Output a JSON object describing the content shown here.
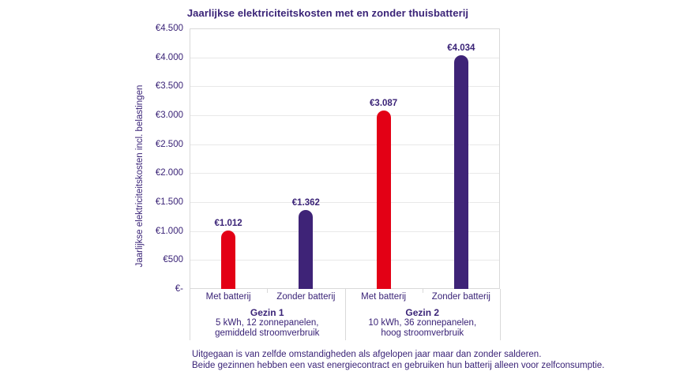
{
  "chart_data": {
    "type": "bar",
    "title": "Jaarlijkse elektriciteitskosten met en zonder thuisbatterij",
    "ylabel": "Jaarlijkse elektriciteitskosten incl. belastingen",
    "xlabel": "",
    "ylim": [
      0,
      4500
    ],
    "ytick_step": 500,
    "grid": true,
    "legend_position": "none",
    "yticks": [
      {
        "value": 4500,
        "label": "€4.500"
      },
      {
        "value": 4000,
        "label": "€4.000"
      },
      {
        "value": 3500,
        "label": "€3.500"
      },
      {
        "value": 3000,
        "label": "€3.000"
      },
      {
        "value": 2500,
        "label": "€2.500"
      },
      {
        "value": 2000,
        "label": "€2.000"
      },
      {
        "value": 1500,
        "label": "€1.500"
      },
      {
        "value": 1000,
        "label": "€1.000"
      },
      {
        "value": 500,
        "label": "€500"
      },
      {
        "value": 0,
        "label": "€-"
      }
    ],
    "groups": [
      {
        "name": "Gezin 1",
        "description_lines": [
          "5 kWh, 12 zonnepanelen,",
          "gemiddeld stroomverbruik"
        ],
        "bars": [
          {
            "category": "Met batterij",
            "value": 1012,
            "label": "€1.012",
            "color": "#e30015"
          },
          {
            "category": "Zonder batterij",
            "value": 1362,
            "label": "€1.362",
            "color": "#3e2377"
          }
        ]
      },
      {
        "name": "Gezin 2",
        "description_lines": [
          "10 kWh, 36 zonnepanelen,",
          "hoog stroomverbruik"
        ],
        "bars": [
          {
            "category": "Met batterij",
            "value": 3087,
            "label": "€3.087",
            "color": "#e30015"
          },
          {
            "category": "Zonder batterij",
            "value": 4034,
            "label": "€4.034",
            "color": "#3e2377"
          }
        ]
      }
    ]
  },
  "footer": {
    "line1": "Uitgegaan is van zelfde omstandigheden als afgelopen jaar maar dan zonder salderen.",
    "line2": "Beide gezinnen hebben een vast energiecontract en gebruiken hun batterij alleen voor zelfconsumptie."
  },
  "colors": {
    "bar_met_batterij": "#e30015",
    "bar_zonder_batterij": "#3e2377",
    "text": "#3a2377",
    "gridline": "#e8e8e8",
    "plot_border": "#d9d9d9"
  }
}
